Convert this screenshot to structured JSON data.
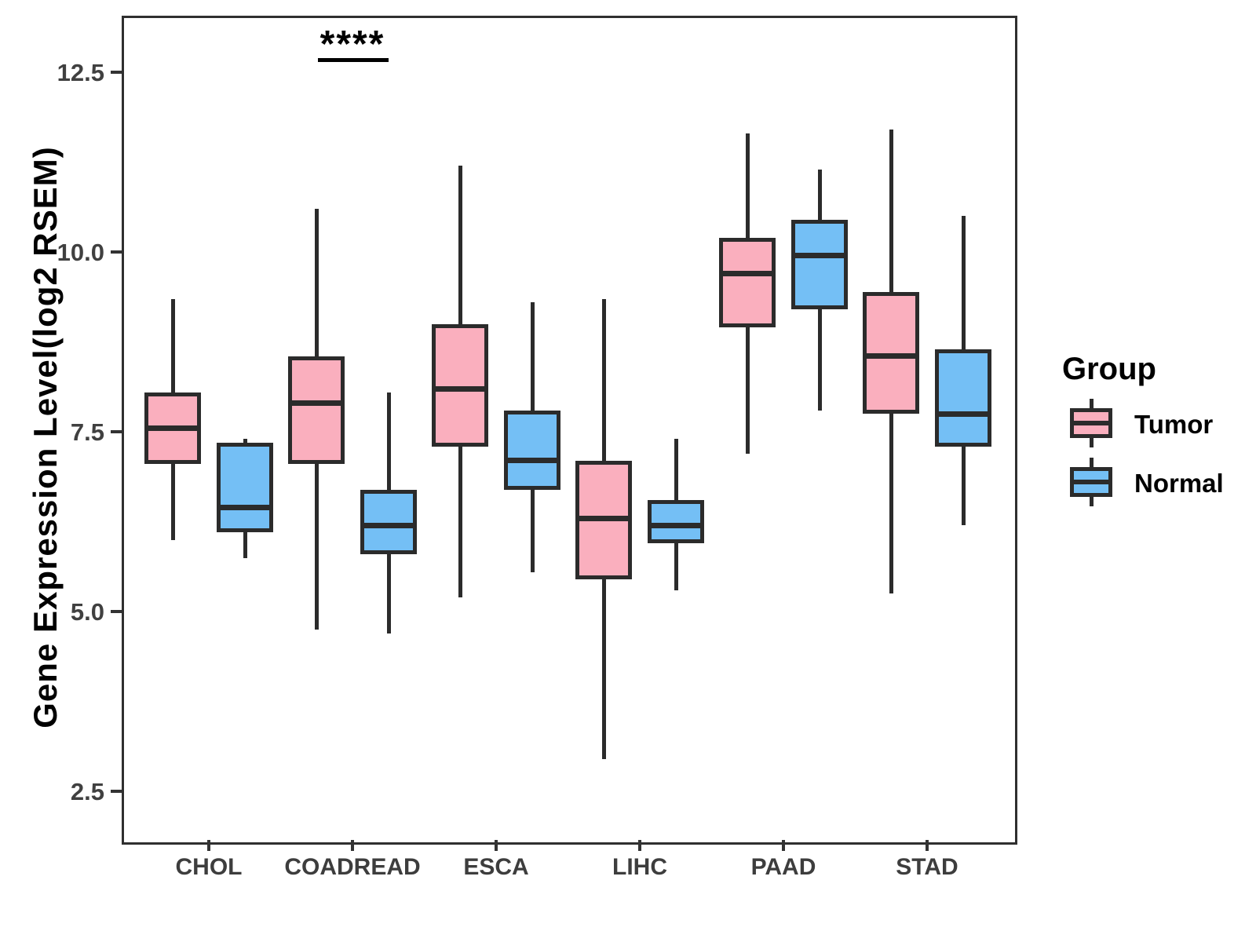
{
  "figure": {
    "y_axis": {
      "title": "Gene Expression Level(log2 RSEM)",
      "tick_labels": [
        "12.5",
        "10.0",
        "7.5",
        "5.0",
        "2.5"
      ],
      "tick_values": [
        12.5,
        10.0,
        7.5,
        5.0,
        2.5
      ]
    },
    "x_axis": {
      "categories": [
        "CHOL",
        "COADREAD",
        "ESCA",
        "LIHC",
        "PAAD",
        "STAD"
      ]
    },
    "legend": {
      "title": "Group",
      "items": [
        {
          "label": "Tumor",
          "color": "#FAAFBE"
        },
        {
          "label": "Normal",
          "color": "#74BFF5"
        }
      ]
    },
    "annotation": {
      "text": "****",
      "category": "COADREAD",
      "category_index": 1
    }
  },
  "chart_data": {
    "type": "boxplot",
    "title": "",
    "xlabel": "",
    "ylabel": "Gene Expression Level(log2 RSEM)",
    "categories": [
      "CHOL",
      "COADREAD",
      "ESCA",
      "LIHC",
      "PAAD",
      "STAD"
    ],
    "yticks": [
      2.5,
      5.0,
      7.5,
      10.0,
      12.5
    ],
    "ylim": [
      1.8,
      13.3
    ],
    "grid": false,
    "legend_position": "right",
    "series": [
      {
        "name": "Tumor",
        "color": "#FAAFBE",
        "boxes": [
          {
            "category": "CHOL",
            "whisker_low": 6.0,
            "q1": 7.05,
            "median": 7.55,
            "q3": 8.05,
            "whisker_high": 9.35
          },
          {
            "category": "COADREAD",
            "whisker_low": 4.75,
            "q1": 7.05,
            "median": 7.9,
            "q3": 8.55,
            "whisker_high": 10.6
          },
          {
            "category": "ESCA",
            "whisker_low": 5.2,
            "q1": 7.3,
            "median": 8.1,
            "q3": 9.0,
            "whisker_high": 11.2
          },
          {
            "category": "LIHC",
            "whisker_low": 2.95,
            "q1": 5.45,
            "median": 6.3,
            "q3": 7.1,
            "whisker_high": 9.35
          },
          {
            "category": "PAAD",
            "whisker_low": 7.2,
            "q1": 8.95,
            "median": 9.7,
            "q3": 10.2,
            "whisker_high": 11.65
          },
          {
            "category": "STAD",
            "whisker_low": 5.25,
            "q1": 7.75,
            "median": 8.55,
            "q3": 9.45,
            "whisker_high": 11.7
          }
        ]
      },
      {
        "name": "Normal",
        "color": "#74BFF5",
        "boxes": [
          {
            "category": "CHOL",
            "whisker_low": 5.75,
            "q1": 6.1,
            "median": 6.45,
            "q3": 7.35,
            "whisker_high": 7.4
          },
          {
            "category": "COADREAD",
            "whisker_low": 4.7,
            "q1": 5.8,
            "median": 6.2,
            "q3": 6.7,
            "whisker_high": 8.05
          },
          {
            "category": "ESCA",
            "whisker_low": 5.55,
            "q1": 6.7,
            "median": 7.1,
            "q3": 7.8,
            "whisker_high": 9.3
          },
          {
            "category": "LIHC",
            "whisker_low": 5.3,
            "q1": 5.95,
            "median": 6.2,
            "q3": 6.55,
            "whisker_high": 7.4
          },
          {
            "category": "PAAD",
            "whisker_low": 7.8,
            "q1": 9.2,
            "median": 9.95,
            "q3": 10.45,
            "whisker_high": 11.15
          },
          {
            "category": "STAD",
            "whisker_low": 6.2,
            "q1": 7.3,
            "median": 7.75,
            "q3": 8.65,
            "whisker_high": 10.5
          }
        ]
      }
    ],
    "annotations": [
      {
        "text": "****",
        "category": "COADREAD",
        "bar_y_value": 12.7
      }
    ]
  }
}
